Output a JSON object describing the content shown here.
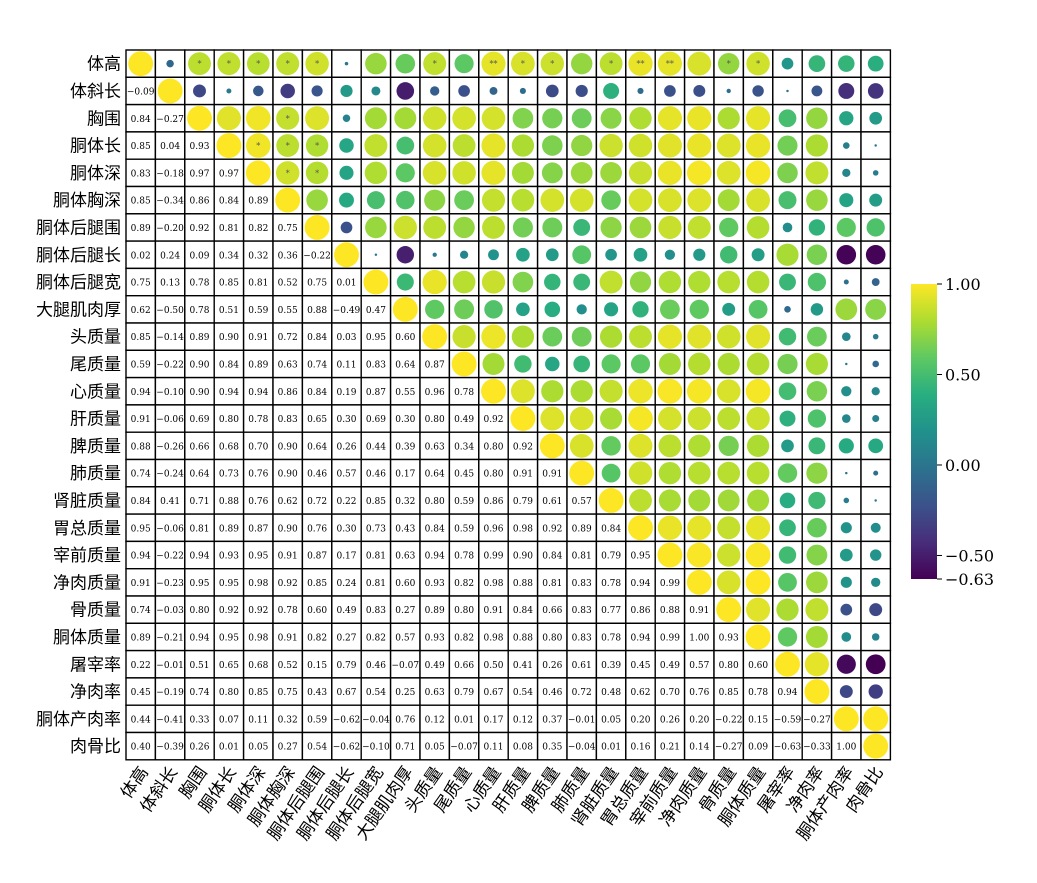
{
  "chart_data": {
    "type": "heatmap",
    "variables": [
      "体高",
      "体斜长",
      "胸围",
      "胴体长",
      "胴体深",
      "胴体胸深",
      "胴体后腿围",
      "胴体后腿长",
      "胴体后腿宽",
      "大腿肌肉厚",
      "头质量",
      "尾质量",
      "心质量",
      "肝质量",
      "脾质量",
      "肺质量",
      "肾脏质量",
      "胃总质量",
      "宰前质量",
      "净肉质量",
      "骨质量",
      "胴体质量",
      "屠宰率",
      "净肉率",
      "胴体产肉率",
      "肉骨比"
    ],
    "lower_labels": [
      [],
      [
        "−0.09"
      ],
      [
        "0.84",
        "−0.27"
      ],
      [
        "0.85",
        "0.04",
        "0.93"
      ],
      [
        "0.83",
        "−0.18",
        "0.97",
        "0.97"
      ],
      [
        "0.85",
        "−0.34",
        "0.86",
        "0.84",
        "0.89"
      ],
      [
        "0.89",
        "−0.20",
        "0.92",
        "0.81",
        "0.82",
        "0.75"
      ],
      [
        "0.02",
        "0.24",
        "0.09",
        "0.34",
        "0.32",
        "0.36",
        "−0.22"
      ],
      [
        "0.75",
        "0.13",
        "0.78",
        "0.85",
        "0.81",
        "0.52",
        "0.75",
        "0.01"
      ],
      [
        "0.62",
        "−0.50",
        "0.78",
        "0.51",
        "0.59",
        "0.55",
        "0.88",
        "−0.49",
        "0.47"
      ],
      [
        "0.85",
        "−0.14",
        "0.89",
        "0.90",
        "0.91",
        "0.72",
        "0.84",
        "0.03",
        "0.95",
        "0.60"
      ],
      [
        "0.59",
        "−0.22",
        "0.90",
        "0.84",
        "0.89",
        "0.63",
        "0.74",
        "0.11",
        "0.83",
        "0.64",
        "0.87"
      ],
      [
        "0.94",
        "−0.10",
        "0.90",
        "0.94",
        "0.94",
        "0.86",
        "0.84",
        "0.19",
        "0.87",
        "0.55",
        "0.96",
        "0.78"
      ],
      [
        "0.91",
        "−0.06",
        "0.69",
        "0.80",
        "0.78",
        "0.83",
        "0.65",
        "0.30",
        "0.69",
        "0.30",
        "0.80",
        "0.49",
        "0.92"
      ],
      [
        "0.88",
        "−0.26",
        "0.66",
        "0.68",
        "0.70",
        "0.90",
        "0.64",
        "0.26",
        "0.44",
        "0.39",
        "0.63",
        "0.34",
        "0.80",
        "0.92"
      ],
      [
        "0.74",
        "−0.24",
        "0.64",
        "0.73",
        "0.76",
        "0.90",
        "0.46",
        "0.57",
        "0.46",
        "0.17",
        "0.64",
        "0.45",
        "0.80",
        "0.91",
        "0.91"
      ],
      [
        "0.84",
        "0.41",
        "0.71",
        "0.88",
        "0.76",
        "0.62",
        "0.72",
        "0.22",
        "0.85",
        "0.32",
        "0.80",
        "0.59",
        "0.86",
        "0.79",
        "0.61",
        "0.57"
      ],
      [
        "0.95",
        "−0.06",
        "0.81",
        "0.89",
        "0.87",
        "0.90",
        "0.76",
        "0.30",
        "0.73",
        "0.43",
        "0.84",
        "0.59",
        "0.96",
        "0.98",
        "0.92",
        "0.89",
        "0.84"
      ],
      [
        "0.94",
        "−0.22",
        "0.94",
        "0.93",
        "0.95",
        "0.91",
        "0.87",
        "0.17",
        "0.81",
        "0.63",
        "0.94",
        "0.78",
        "0.99",
        "0.90",
        "0.84",
        "0.81",
        "0.79",
        "0.95"
      ],
      [
        "0.91",
        "−0.23",
        "0.95",
        "0.95",
        "0.98",
        "0.92",
        "0.85",
        "0.24",
        "0.81",
        "0.60",
        "0.93",
        "0.82",
        "0.98",
        "0.88",
        "0.81",
        "0.83",
        "0.78",
        "0.94",
        "0.99"
      ],
      [
        "0.74",
        "−0.03",
        "0.80",
        "0.92",
        "0.92",
        "0.78",
        "0.60",
        "0.49",
        "0.83",
        "0.27",
        "0.89",
        "0.80",
        "0.91",
        "0.84",
        "0.66",
        "0.83",
        "0.77",
        "0.86",
        "0.88",
        "0.91"
      ],
      [
        "0.89",
        "−0.21",
        "0.94",
        "0.95",
        "0.98",
        "0.91",
        "0.82",
        "0.27",
        "0.82",
        "0.57",
        "0.93",
        "0.82",
        "0.98",
        "0.88",
        "0.80",
        "0.83",
        "0.78",
        "0.94",
        "0.99",
        "1.00",
        "0.93"
      ],
      [
        "0.22",
        "−0.01",
        "0.51",
        "0.65",
        "0.68",
        "0.52",
        "0.15",
        "0.79",
        "0.46",
        "−0.07",
        "0.49",
        "0.66",
        "0.50",
        "0.41",
        "0.26",
        "0.61",
        "0.39",
        "0.45",
        "0.49",
        "0.57",
        "0.80",
        "0.60"
      ],
      [
        "0.45",
        "−0.19",
        "0.74",
        "0.80",
        "0.85",
        "0.75",
        "0.43",
        "0.67",
        "0.54",
        "0.25",
        "0.63",
        "0.79",
        "0.67",
        "0.54",
        "0.46",
        "0.72",
        "0.48",
        "0.62",
        "0.70",
        "0.76",
        "0.85",
        "0.78",
        "0.94"
      ],
      [
        "0.44",
        "−0.41",
        "0.33",
        "0.07",
        "0.11",
        "0.32",
        "0.59",
        "−0.62",
        "−0.04",
        "0.76",
        "0.12",
        "0.01",
        "0.17",
        "0.12",
        "0.37",
        "−0.01",
        "0.05",
        "0.20",
        "0.26",
        "0.20",
        "−0.22",
        "0.15",
        "−0.59",
        "−0.27"
      ],
      [
        "0.40",
        "−0.39",
        "0.26",
        "0.01",
        "0.05",
        "0.27",
        "0.54",
        "−0.62",
        "−0.10",
        "0.71",
        "0.05",
        "−0.07",
        "0.11",
        "0.08",
        "0.35",
        "−0.04",
        "0.01",
        "0.16",
        "0.21",
        "0.14",
        "−0.27",
        "0.09",
        "−0.63",
        "−0.33",
        "1.00"
      ]
    ],
    "significance": {
      "*": [
        [
          0,
          2
        ],
        [
          0,
          3
        ],
        [
          0,
          4
        ],
        [
          0,
          5
        ],
        [
          0,
          6
        ],
        [
          0,
          10
        ],
        [
          0,
          13
        ],
        [
          0,
          14
        ],
        [
          0,
          16
        ],
        [
          0,
          20
        ],
        [
          0,
          21
        ],
        [
          2,
          5
        ],
        [
          3,
          4
        ],
        [
          3,
          5
        ],
        [
          3,
          6
        ],
        [
          4,
          5
        ],
        [
          4,
          6
        ],
        [
          1,
          1
        ]
      ],
      "**": [
        [
          0,
          12
        ],
        [
          0,
          17
        ],
        [
          0,
          18
        ]
      ]
    },
    "colorbar": {
      "min": -0.63,
      "max": 1.0,
      "tick_labels": [
        "1.00",
        "0.50",
        "0.00",
        "−0.50",
        "−0.63"
      ],
      "tick_values": [
        1.0,
        0.5,
        0.0,
        -0.5,
        -0.63
      ],
      "colormap": "viridis"
    }
  }
}
